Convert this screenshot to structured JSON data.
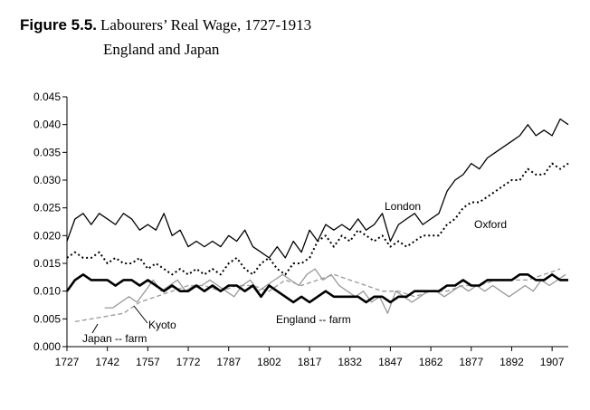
{
  "figure": {
    "label": "Figure 5.5.",
    "title": "Labourers’ Real Wage, 1727-1913",
    "subtitle": "England and Japan"
  },
  "chart_data": {
    "type": "line",
    "title": "Labourers’ Real Wage, 1727-1913",
    "subtitle": "England and Japan",
    "xlabel": "",
    "ylabel": "",
    "xlim": [
      1727,
      1913
    ],
    "ylim": [
      0,
      0.045
    ],
    "grid": false,
    "x_ticks": [
      "1727",
      "1742",
      "1757",
      "1772",
      "1787",
      "1802",
      "1817",
      "1832",
      "1847",
      "1862",
      "1877",
      "1892",
      "1907"
    ],
    "y_ticks": [
      "0.000",
      "0.005",
      "0.010",
      "0.015",
      "0.020",
      "0.025",
      "0.030",
      "0.035",
      "0.040",
      "0.045"
    ],
    "annotations": {
      "london": "London",
      "oxford": "Oxford",
      "kyoto": "Kyoto",
      "england_farm": "England -- farm",
      "japan_farm": "Japan -- farm"
    },
    "series": [
      {
        "name": "London",
        "style": "solid",
        "color": "#000000",
        "x": [
          1727,
          1730,
          1733,
          1736,
          1739,
          1742,
          1745,
          1748,
          1751,
          1754,
          1757,
          1760,
          1763,
          1766,
          1769,
          1772,
          1775,
          1778,
          1781,
          1784,
          1787,
          1790,
          1793,
          1796,
          1799,
          1802,
          1805,
          1808,
          1811,
          1814,
          1817,
          1820,
          1823,
          1826,
          1829,
          1832,
          1835,
          1838,
          1841,
          1844,
          1847,
          1850,
          1853,
          1856,
          1859,
          1862,
          1865,
          1868,
          1871,
          1874,
          1877,
          1880,
          1883,
          1886,
          1889,
          1892,
          1895,
          1898,
          1901,
          1904,
          1907,
          1910,
          1913
        ],
        "values": [
          0.019,
          0.023,
          0.024,
          0.022,
          0.024,
          0.023,
          0.022,
          0.024,
          0.023,
          0.021,
          0.022,
          0.021,
          0.024,
          0.02,
          0.021,
          0.018,
          0.019,
          0.018,
          0.019,
          0.018,
          0.02,
          0.019,
          0.021,
          0.018,
          0.017,
          0.016,
          0.018,
          0.016,
          0.019,
          0.017,
          0.021,
          0.019,
          0.022,
          0.021,
          0.022,
          0.021,
          0.023,
          0.021,
          0.022,
          0.024,
          0.019,
          0.022,
          0.023,
          0.024,
          0.022,
          0.023,
          0.024,
          0.028,
          0.03,
          0.031,
          0.033,
          0.032,
          0.034,
          0.035,
          0.036,
          0.037,
          0.038,
          0.04,
          0.038,
          0.039,
          0.038,
          0.041,
          0.04
        ]
      },
      {
        "name": "Oxford",
        "style": "dotted",
        "color": "#000000",
        "x": [
          1727,
          1730,
          1733,
          1736,
          1739,
          1742,
          1745,
          1748,
          1751,
          1754,
          1757,
          1760,
          1763,
          1766,
          1769,
          1772,
          1775,
          1778,
          1781,
          1784,
          1787,
          1790,
          1793,
          1796,
          1799,
          1802,
          1805,
          1808,
          1811,
          1814,
          1817,
          1820,
          1823,
          1826,
          1829,
          1832,
          1835,
          1838,
          1841,
          1844,
          1847,
          1850,
          1853,
          1856,
          1859,
          1862,
          1865,
          1868,
          1871,
          1874,
          1877,
          1880,
          1883,
          1886,
          1889,
          1892,
          1895,
          1898,
          1901,
          1904,
          1907,
          1910,
          1913
        ],
        "values": [
          0.016,
          0.017,
          0.016,
          0.016,
          0.017,
          0.015,
          0.016,
          0.015,
          0.015,
          0.016,
          0.014,
          0.015,
          0.014,
          0.013,
          0.014,
          0.013,
          0.014,
          0.013,
          0.014,
          0.013,
          0.015,
          0.016,
          0.014,
          0.013,
          0.015,
          0.016,
          0.014,
          0.013,
          0.015,
          0.015,
          0.016,
          0.019,
          0.02,
          0.018,
          0.02,
          0.019,
          0.021,
          0.02,
          0.019,
          0.02,
          0.018,
          0.019,
          0.018,
          0.019,
          0.02,
          0.02,
          0.02,
          0.022,
          0.023,
          0.025,
          0.026,
          0.026,
          0.027,
          0.028,
          0.029,
          0.03,
          0.03,
          0.032,
          0.031,
          0.031,
          0.033,
          0.032,
          0.033
        ]
      },
      {
        "name": "Kyoto",
        "style": "solid",
        "color": "#999999",
        "x": [
          1741,
          1744,
          1747,
          1750,
          1753,
          1756,
          1759,
          1762,
          1765,
          1768,
          1771,
          1774,
          1777,
          1780,
          1783,
          1786,
          1789,
          1792,
          1795,
          1798,
          1801,
          1804,
          1807,
          1810,
          1813,
          1816,
          1819,
          1822,
          1825,
          1828,
          1831,
          1834,
          1837,
          1840,
          1843,
          1846,
          1849,
          1852,
          1855,
          1858,
          1861,
          1864,
          1867,
          1870,
          1873,
          1876,
          1879,
          1882,
          1885,
          1888,
          1891,
          1894,
          1897,
          1900,
          1903,
          1906,
          1909,
          1912
        ],
        "values": [
          0.007,
          0.007,
          0.008,
          0.009,
          0.008,
          0.01,
          0.012,
          0.01,
          0.011,
          0.012,
          0.01,
          0.011,
          0.011,
          0.012,
          0.011,
          0.01,
          0.009,
          0.011,
          0.012,
          0.01,
          0.011,
          0.012,
          0.013,
          0.012,
          0.011,
          0.013,
          0.014,
          0.012,
          0.013,
          0.011,
          0.01,
          0.009,
          0.01,
          0.008,
          0.009,
          0.006,
          0.01,
          0.009,
          0.008,
          0.009,
          0.01,
          0.01,
          0.009,
          0.01,
          0.011,
          0.01,
          0.011,
          0.01,
          0.011,
          0.01,
          0.009,
          0.01,
          0.011,
          0.01,
          0.012,
          0.011,
          0.012,
          0.013
        ]
      },
      {
        "name": "Japan -- farm",
        "style": "dashed",
        "color": "#999999",
        "x": [
          1730,
          1736,
          1742,
          1748,
          1754,
          1760,
          1766,
          1772,
          1778,
          1784,
          1790,
          1796,
          1802,
          1808,
          1814,
          1820,
          1826,
          1832,
          1838,
          1844,
          1850,
          1856,
          1862,
          1868,
          1874,
          1880,
          1886,
          1892,
          1898,
          1904,
          1910
        ],
        "values": [
          0.0045,
          0.005,
          0.0055,
          0.006,
          0.008,
          0.009,
          0.01,
          0.011,
          0.011,
          0.01,
          0.011,
          0.011,
          0.01,
          0.012,
          0.011,
          0.012,
          0.013,
          0.012,
          0.011,
          0.01,
          0.01,
          0.009,
          0.01,
          0.01,
          0.011,
          0.011,
          0.012,
          0.012,
          0.012,
          0.013,
          0.014
        ]
      },
      {
        "name": "England -- farm",
        "style": "solid-thick",
        "color": "#000000",
        "x": [
          1727,
          1730,
          1733,
          1736,
          1739,
          1742,
          1745,
          1748,
          1751,
          1754,
          1757,
          1760,
          1763,
          1766,
          1769,
          1772,
          1775,
          1778,
          1781,
          1784,
          1787,
          1790,
          1793,
          1796,
          1799,
          1802,
          1805,
          1808,
          1811,
          1814,
          1817,
          1820,
          1823,
          1826,
          1829,
          1832,
          1835,
          1838,
          1841,
          1844,
          1847,
          1850,
          1853,
          1856,
          1859,
          1862,
          1865,
          1868,
          1871,
          1874,
          1877,
          1880,
          1883,
          1886,
          1889,
          1892,
          1895,
          1898,
          1901,
          1904,
          1907,
          1910,
          1913
        ],
        "values": [
          0.01,
          0.012,
          0.013,
          0.012,
          0.012,
          0.012,
          0.011,
          0.012,
          0.012,
          0.011,
          0.012,
          0.011,
          0.01,
          0.011,
          0.01,
          0.01,
          0.011,
          0.01,
          0.011,
          0.01,
          0.011,
          0.011,
          0.01,
          0.011,
          0.009,
          0.011,
          0.01,
          0.009,
          0.008,
          0.009,
          0.008,
          0.009,
          0.01,
          0.009,
          0.009,
          0.009,
          0.009,
          0.008,
          0.009,
          0.009,
          0.008,
          0.009,
          0.009,
          0.01,
          0.01,
          0.01,
          0.01,
          0.011,
          0.011,
          0.012,
          0.011,
          0.011,
          0.012,
          0.012,
          0.012,
          0.012,
          0.013,
          0.013,
          0.012,
          0.012,
          0.013,
          0.012,
          0.012
        ]
      }
    ]
  }
}
